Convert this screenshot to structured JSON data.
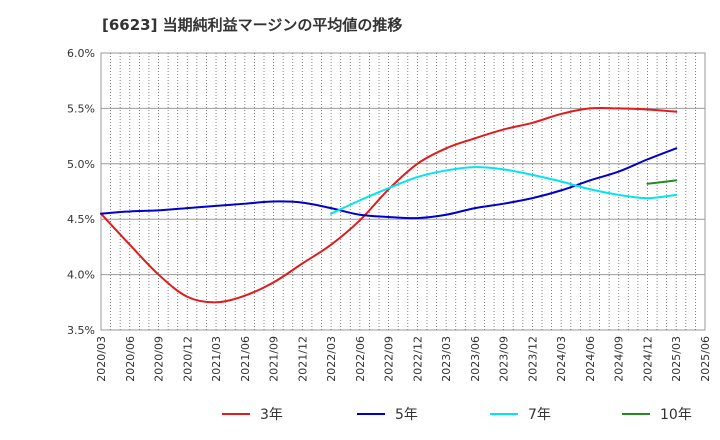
{
  "chart_data": {
    "type": "line",
    "title": "[6623]  当期純利益マージンの平均値の推移",
    "y_ticks": [
      "6.0%",
      "5.5%",
      "5.0%",
      "4.5%",
      "4.0%",
      "3.5%"
    ],
    "x_ticks": [
      "2020/03",
      "2020/06",
      "2020/09",
      "2020/12",
      "2021/03",
      "2021/06",
      "2021/09",
      "2021/12",
      "2022/03",
      "2022/06",
      "2022/09",
      "2022/12",
      "2023/03",
      "2023/06",
      "2023/09",
      "2023/12",
      "2024/03",
      "2024/06",
      "2024/09",
      "2024/12",
      "2025/03",
      "2025/06"
    ],
    "ylim": [
      3.5,
      6.0
    ],
    "grid": true,
    "legend_position": "bottom",
    "series": [
      {
        "name": "3年",
        "color": "#e31a1c",
        "x": [
          "2020/03",
          "2020/06",
          "2020/09",
          "2020/12",
          "2021/03",
          "2021/06",
          "2021/09",
          "2021/12",
          "2022/03",
          "2022/06",
          "2022/09",
          "2022/12",
          "2023/03",
          "2023/06",
          "2023/09",
          "2023/12",
          "2024/03",
          "2024/06",
          "2024/09",
          "2024/12",
          "2025/03"
        ],
        "values": [
          4.55,
          4.27,
          4.0,
          3.8,
          3.75,
          3.81,
          3.93,
          4.1,
          4.27,
          4.49,
          4.77,
          5.0,
          5.14,
          5.23,
          5.31,
          5.37,
          5.45,
          5.5,
          5.5,
          5.49,
          5.47
        ]
      },
      {
        "name": "5年",
        "color": "#0000cc",
        "x": [
          "2020/03",
          "2020/06",
          "2020/09",
          "2020/12",
          "2021/03",
          "2021/06",
          "2021/09",
          "2021/12",
          "2022/03",
          "2022/06",
          "2022/09",
          "2022/12",
          "2023/03",
          "2023/06",
          "2023/09",
          "2023/12",
          "2024/03",
          "2024/06",
          "2024/09",
          "2024/12",
          "2025/03"
        ],
        "values": [
          4.55,
          4.57,
          4.58,
          4.6,
          4.62,
          4.64,
          4.66,
          4.65,
          4.6,
          4.54,
          4.52,
          4.51,
          4.54,
          4.6,
          4.64,
          4.69,
          4.76,
          4.85,
          4.93,
          5.04,
          5.14
        ]
      },
      {
        "name": "7年",
        "color": "#00e5ee",
        "x": [
          "2022/03",
          "2022/06",
          "2022/09",
          "2022/12",
          "2023/03",
          "2023/06",
          "2023/09",
          "2023/12",
          "2024/03",
          "2024/06",
          "2024/09",
          "2024/12",
          "2025/03"
        ],
        "values": [
          4.55,
          4.67,
          4.78,
          4.88,
          4.94,
          4.97,
          4.95,
          4.9,
          4.84,
          4.77,
          4.72,
          4.69,
          4.72
        ]
      },
      {
        "name": "10年",
        "color": "#228b22",
        "x": [
          "2024/12",
          "2025/03"
        ],
        "values": [
          4.82,
          4.85
        ]
      }
    ]
  }
}
